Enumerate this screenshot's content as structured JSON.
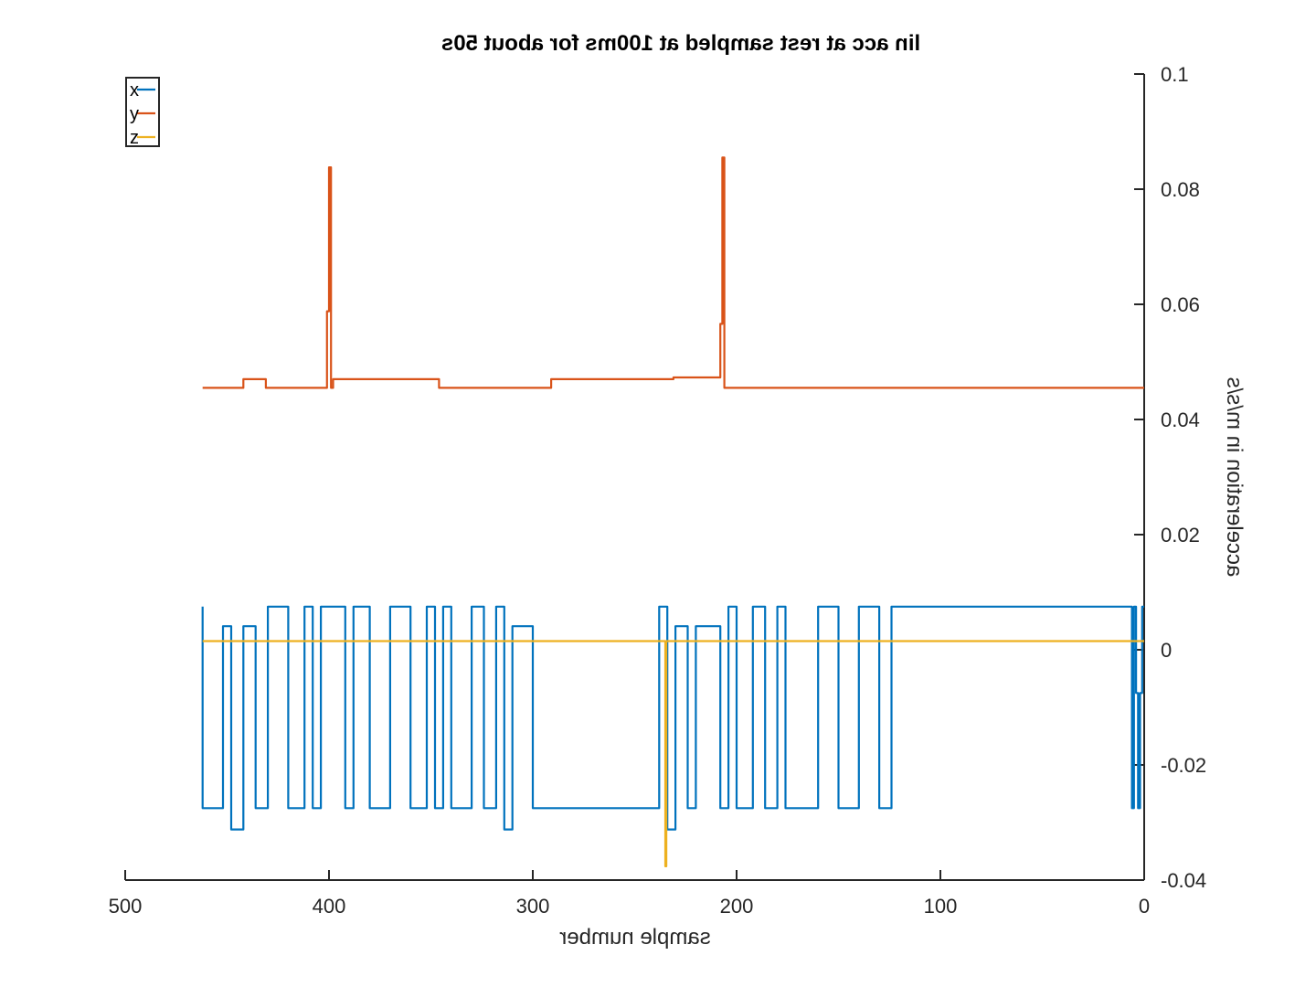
{
  "chart_data": {
    "type": "line",
    "title": "lin acc at rest sampled at 100ms for about 50s",
    "xlabel": "sample number",
    "ylabel": "acceleration in m/s/s",
    "xlim": [
      0,
      500
    ],
    "ylim": [
      -0.04,
      0.1
    ],
    "x_reversed": true,
    "y_axis_side": "right",
    "grid": false,
    "legend_position": "top-left",
    "x_ticks": [
      0,
      100,
      200,
      300,
      400,
      500
    ],
    "x_tick_labels": [
      "0",
      "100",
      "200",
      "300",
      "400",
      "500"
    ],
    "y_ticks": [
      -0.04,
      -0.02,
      0,
      0.02,
      0.04,
      0.06,
      0.08,
      0.1
    ],
    "y_tick_labels": [
      "-0.04",
      "-0.02",
      "0",
      "0.02",
      "0.04",
      "0.06",
      "0.08",
      "0.1"
    ],
    "series": [
      {
        "name": "x",
        "color": "#0072BD",
        "x": [
          0,
          1,
          2,
          3,
          4,
          5,
          6,
          120,
          124,
          130,
          140,
          150,
          160,
          176,
          180,
          186,
          192,
          200,
          204,
          208,
          212,
          220,
          224,
          230,
          234,
          238,
          300,
          304,
          310,
          314,
          318,
          324,
          330,
          340,
          344,
          348,
          352,
          360,
          370,
          380,
          388,
          392,
          400,
          404,
          408,
          412,
          420,
          430,
          436,
          442,
          448,
          452,
          462
        ],
        "y": [
          0.0075,
          -0.0075,
          -0.0275,
          -0.0075,
          0.0075,
          -0.0275,
          0.0075,
          0.0075,
          -0.0275,
          0.0075,
          -0.0275,
          0.0075,
          -0.0275,
          0.0075,
          -0.0275,
          0.0075,
          -0.0275,
          0.0075,
          -0.0275,
          0.0041,
          0.0041,
          -0.0275,
          0.0041,
          -0.0312,
          0.0075,
          -0.0275,
          0.0041,
          0.0041,
          -0.0312,
          0.0075,
          -0.0275,
          0.0075,
          -0.0275,
          0.0075,
          -0.0275,
          0.0075,
          -0.0275,
          0.0075,
          -0.0275,
          0.0075,
          -0.0275,
          0.0075,
          0.0075,
          -0.0275,
          0.0075,
          -0.0275,
          0.0075,
          -0.0275,
          0.0041,
          -0.0312,
          0.0041,
          -0.0275,
          0.0075
        ]
      },
      {
        "name": "y",
        "color": "#D95319",
        "x": [
          0,
          205,
          206,
          207,
          208,
          230,
          231,
          290,
          291,
          345,
          346,
          398,
          399,
          400,
          401,
          430,
          431,
          441,
          442,
          462
        ],
        "y": [
          0.0455,
          0.0455,
          0.0855,
          0.0566,
          0.0473,
          0.0473,
          0.047,
          0.047,
          0.0455,
          0.0455,
          0.047,
          0.0455,
          0.0838,
          0.0588,
          0.0455,
          0.0455,
          0.047,
          0.047,
          0.0455,
          0.0455
        ]
      },
      {
        "name": "z",
        "color": "#EDB120",
        "x": [
          0,
          234,
          234.5,
          235,
          462
        ],
        "y": [
          0.0015,
          0.0015,
          -0.0376,
          0.0015,
          0.0015
        ]
      }
    ]
  }
}
